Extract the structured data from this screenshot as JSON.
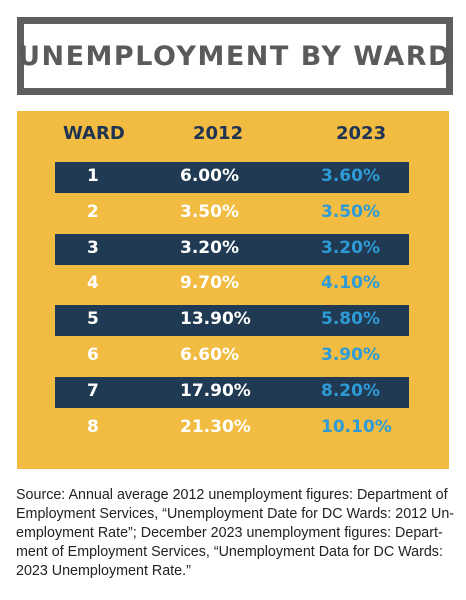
{
  "title": "UNEMPLOYMENT BY WARD",
  "colors": {
    "title_border": "#5f5f5f",
    "title_text": "#5a5a5a",
    "panel_background": "#f1bc41",
    "header_text": "#1f3452",
    "dark_row": "#1f3a52",
    "value_2012_text": "#ffffff",
    "value_2023_text": "#2e9bd6"
  },
  "chart_data": {
    "type": "table",
    "title": "UNEMPLOYMENT BY WARD",
    "columns": [
      "WARD",
      "2012",
      "2023"
    ],
    "rows": [
      {
        "ward": "1",
        "v2012": "6.00%",
        "v2023": "3.60%",
        "shaded": true
      },
      {
        "ward": "2",
        "v2012": "3.50%",
        "v2023": "3.50%",
        "shaded": false
      },
      {
        "ward": "3",
        "v2012": "3.20%",
        "v2023": "3.20%",
        "shaded": true
      },
      {
        "ward": "4",
        "v2012": "9.70%",
        "v2023": "4.10%",
        "shaded": false
      },
      {
        "ward": "5",
        "v2012": "13.90%",
        "v2023": "5.80%",
        "shaded": true
      },
      {
        "ward": "6",
        "v2012": "6.60%",
        "v2023": "3.90%",
        "shaded": false
      },
      {
        "ward": "7",
        "v2012": "17.90%",
        "v2023": "8.20%",
        "shaded": true
      },
      {
        "ward": "8",
        "v2012": "21.30%",
        "v2023": "10.10%",
        "shaded": false
      }
    ]
  },
  "source_lines": [
    "Source: Annual average 2012 unemployment figures: Department of",
    "Employment Services, “Unemployment Date for DC Wards: 2012 Un-",
    "employment Rate”; December 2023 unemployment figures: Depart-",
    "ment of Employment Services, “Unemployment Data for DC Wards:",
    "2023 Unemployment Rate.”"
  ]
}
